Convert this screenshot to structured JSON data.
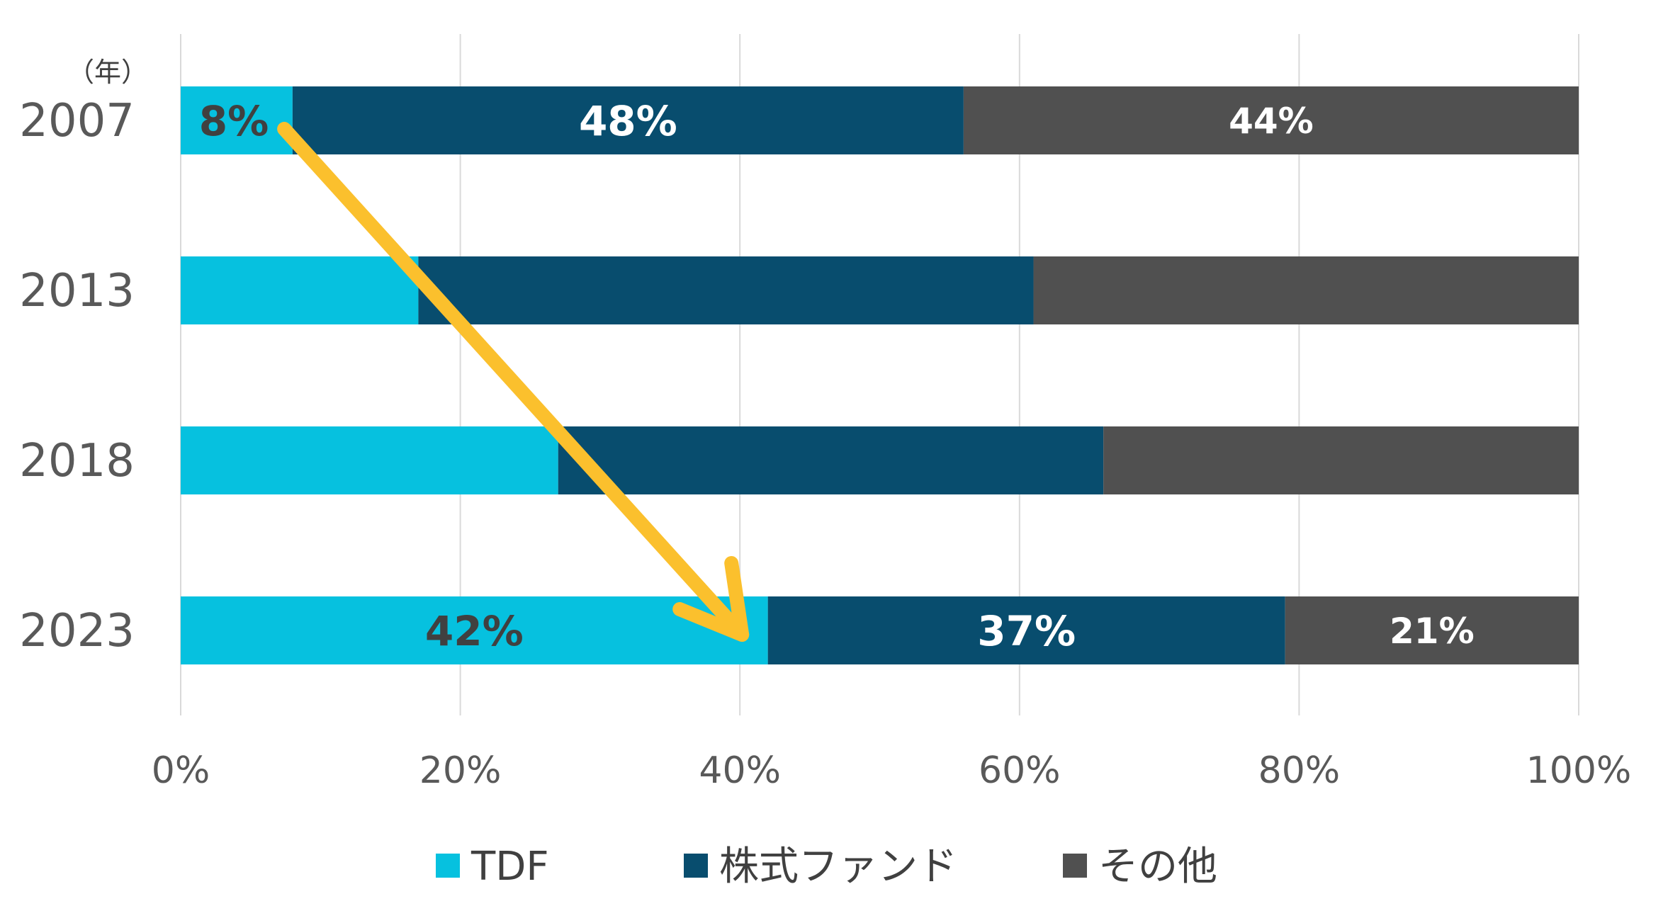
{
  "chart_data": {
    "type": "bar",
    "orientation": "horizontal",
    "stacked": "percent",
    "unit_label": "（年）",
    "categories": [
      "2007",
      "2013",
      "2018",
      "2023"
    ],
    "series": [
      {
        "name": "TDF",
        "color": "#06C1DF",
        "values": [
          8,
          17,
          27,
          42
        ]
      },
      {
        "name": "株式ファンド",
        "color": "#084D6E",
        "values": [
          48,
          44,
          39,
          37
        ]
      },
      {
        "name": "その他",
        "color": "#505050",
        "values": [
          44,
          39,
          34,
          21
        ]
      }
    ],
    "data_labels": [
      {
        "category": "2007",
        "series": "TDF",
        "text": "8%"
      },
      {
        "category": "2007",
        "series": "株式ファンド",
        "text": "48%"
      },
      {
        "category": "2007",
        "series": "その他",
        "text": "44%"
      },
      {
        "category": "2023",
        "series": "TDF",
        "text": "42%"
      },
      {
        "category": "2023",
        "series": "株式ファンド",
        "text": "37%"
      },
      {
        "category": "2023",
        "series": "その他",
        "text": "21%"
      }
    ],
    "x_ticks": [
      "0%",
      "20%",
      "40%",
      "60%",
      "80%",
      "100%"
    ],
    "xlim": [
      0,
      100
    ],
    "grid": true,
    "legend_position": "bottom",
    "annotation": {
      "type": "arrow",
      "from": {
        "category": "2007",
        "x": 7
      },
      "to": {
        "category": "2023",
        "x": 40
      },
      "color": "#FBC02D"
    }
  }
}
